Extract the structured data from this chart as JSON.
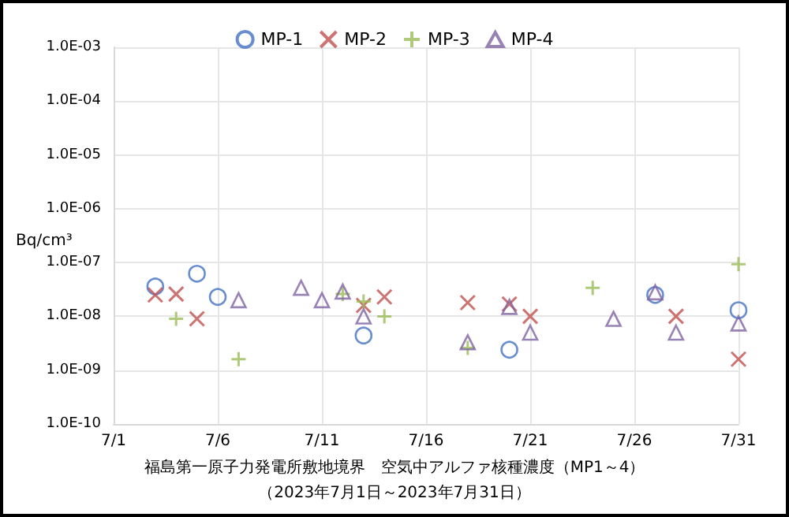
{
  "chart_data": {
    "type": "scatter",
    "title": "福島第一原子力発電所敷地境界　空気中アルファ核種濃度（MP1～4）",
    "subtitle": "（2023年7月1日～2023年7月31日）",
    "ylabel": "Bq/cm³",
    "log": "y",
    "grid": true,
    "legend": "top",
    "xlim": [
      "--07-01",
      "--07-31"
    ],
    "xticks": [
      {
        "value": "--07-01",
        "label": "7/1"
      },
      {
        "value": "--07-06",
        "label": "7/6"
      },
      {
        "value": "--07-11",
        "label": "7/11"
      },
      {
        "value": "--07-16",
        "label": "7/16"
      },
      {
        "value": "--07-21",
        "label": "7/21"
      },
      {
        "value": "--07-26",
        "label": "7/26"
      },
      {
        "value": "--07-31",
        "label": "7/31"
      }
    ],
    "ylim": [
      1e-10,
      0.001
    ],
    "yticks": [
      {
        "value": 1e-10,
        "label": "1.0E-10"
      },
      {
        "value": 1e-09,
        "label": "1.0E-09"
      },
      {
        "value": 1e-08,
        "label": "1.0E-08"
      },
      {
        "value": 1e-07,
        "label": "1.0E-07"
      },
      {
        "value": 1e-06,
        "label": "1.0E-06"
      },
      {
        "value": 1e-05,
        "label": "1.0E-05"
      },
      {
        "value": 0.0001,
        "label": "1.0E-04"
      },
      {
        "value": 0.001,
        "label": "1.0E-03"
      }
    ],
    "series": [
      {
        "name": "MP-1",
        "color": "#4472c4",
        "marker": "circle",
        "x": [
          "--07-03",
          "--07-05",
          "--07-06",
          "--07-13",
          "--07-20",
          "--07-27",
          "--07-31"
        ],
        "values": [
          3.6e-08,
          6.2e-08,
          2.3e-08,
          4.4e-09,
          2.4e-09,
          2.5e-08,
          1.3e-08
        ]
      },
      {
        "name": "MP-2",
        "color": "#c0504d",
        "marker": "cross",
        "x": [
          "--07-03",
          "--07-04",
          "--07-05",
          "--07-13",
          "--07-14",
          "--07-18",
          "--07-20",
          "--07-21",
          "--07-28",
          "--07-31"
        ],
        "values": [
          2.5e-08,
          2.6e-08,
          9e-09,
          1.6e-08,
          2.3e-08,
          1.8e-08,
          1.7e-08,
          1e-08,
          1e-08,
          1.6e-09
        ]
      },
      {
        "name": "MP-3",
        "color": "#9bbb59",
        "marker": "plus",
        "x": [
          "--07-04",
          "--07-07",
          "--07-12",
          "--07-13",
          "--07-14",
          "--07-18",
          "--07-24",
          "--07-31"
        ],
        "values": [
          9e-09,
          1.6e-09,
          2.6e-08,
          1.9e-08,
          1e-08,
          2.6e-09,
          3.4e-08,
          9.3e-08
        ]
      },
      {
        "name": "MP-4",
        "color": "#8064a2",
        "marker": "triangle",
        "x": [
          "--07-07",
          "--07-10",
          "--07-11",
          "--07-12",
          "--07-13",
          "--07-18",
          "--07-20",
          "--07-21",
          "--07-25",
          "--07-27",
          "--07-28",
          "--07-31"
        ],
        "values": [
          2e-08,
          3.4e-08,
          2e-08,
          2.9e-08,
          1e-08,
          3.3e-09,
          1.5e-08,
          5e-09,
          9e-09,
          2.8e-08,
          5e-09,
          7.4e-09
        ]
      }
    ]
  }
}
